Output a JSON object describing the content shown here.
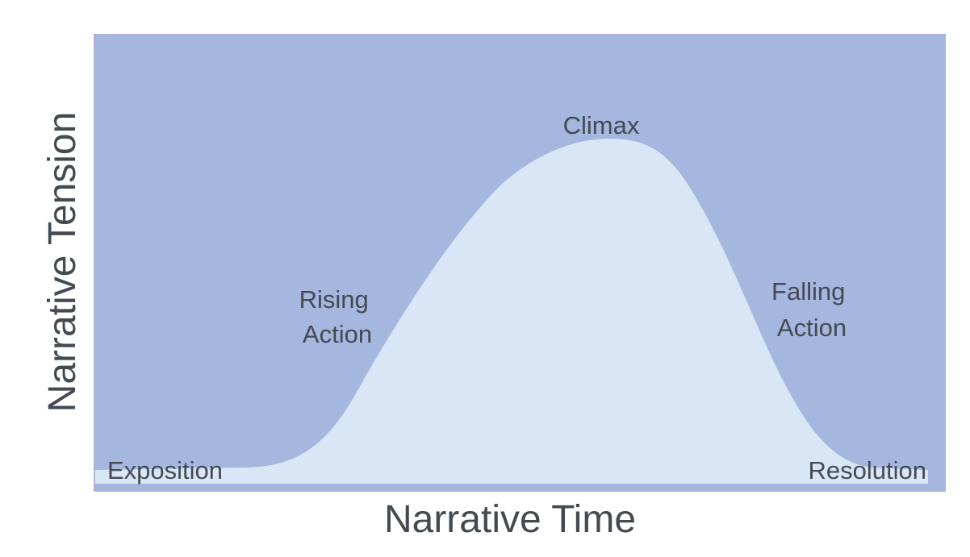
{
  "colors": {
    "panel_background": "#a5b6df",
    "curve_fill": "#d9e6f6",
    "text": "#444a52",
    "page_background": "#ffffff"
  },
  "diagram": {
    "y_axis_label": "Narrative Tension",
    "x_axis_label": "Narrative Time",
    "stages": {
      "exposition": "Exposition",
      "rising_action": [
        "Rising",
        "Action"
      ],
      "climax": "Climax",
      "falling_action": [
        "Falling",
        "Action"
      ],
      "resolution": "Resolution"
    }
  }
}
